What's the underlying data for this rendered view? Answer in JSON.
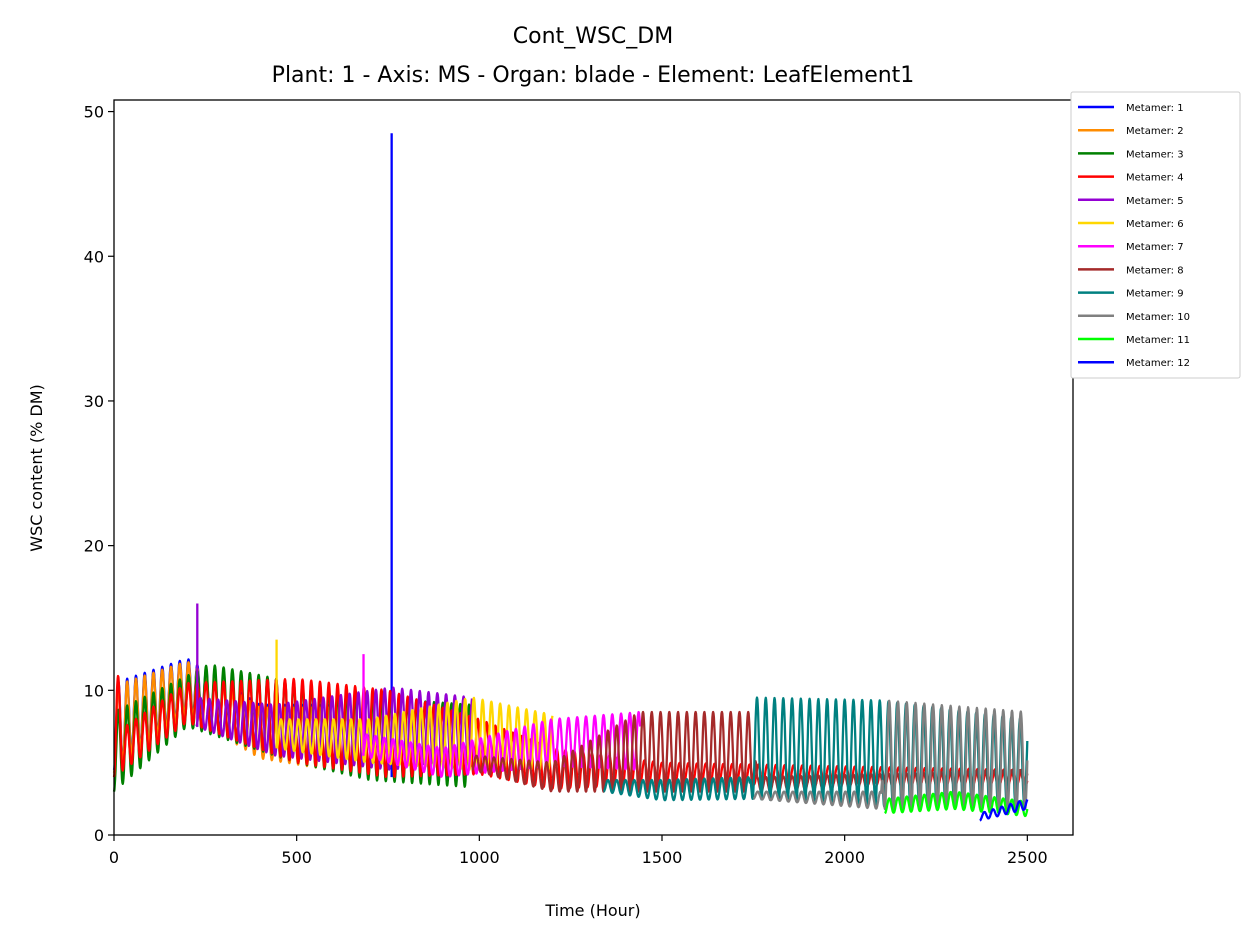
{
  "chart_data": {
    "type": "line",
    "title": "Cont_WSC_DM",
    "subtitle": "Plant: 1 - Axis: MS - Organ: blade - Element: LeafElement1",
    "xlabel": "Time (Hour)",
    "ylabel": "WSC content (% DM)",
    "xlim": [
      0,
      2625
    ],
    "ylim": [
      0,
      50.8
    ],
    "xticks": [
      0,
      500,
      1000,
      1500,
      2000,
      2500
    ],
    "yticks": [
      0,
      10,
      20,
      30,
      40,
      50
    ],
    "grid": false,
    "legend_position": "outside top-right",
    "series": [
      {
        "name": "Metamer: 1",
        "color": "#0000ff",
        "start": 0,
        "end": 760,
        "period": 24,
        "lower": [
          [
            0,
            4.5
          ],
          [
            200,
            8.5
          ],
          [
            400,
            5.5
          ],
          [
            760,
            4.0
          ]
        ],
        "upper": [
          [
            0,
            10.5
          ],
          [
            200,
            12.2
          ],
          [
            400,
            9.0
          ],
          [
            760,
            9.0
          ]
        ],
        "spikes": [
          [
            760,
            48.5
          ]
        ]
      },
      {
        "name": "Metamer: 2",
        "color": "#ff8c00",
        "start": 0,
        "end": 760,
        "period": 24,
        "lower": [
          [
            0,
            4.3
          ],
          [
            200,
            8.3
          ],
          [
            400,
            5.3
          ],
          [
            760,
            3.8
          ]
        ],
        "upper": [
          [
            0,
            10.3
          ],
          [
            200,
            12.0
          ],
          [
            400,
            8.8
          ],
          [
            760,
            8.8
          ]
        ],
        "spikes": []
      },
      {
        "name": "Metamer: 3",
        "color": "#008000",
        "start": 0,
        "end": 980,
        "period": 24,
        "lower": [
          [
            0,
            3.0
          ],
          [
            200,
            7.5
          ],
          [
            500,
            5.0
          ],
          [
            700,
            3.8
          ],
          [
            980,
            3.3
          ]
        ],
        "upper": [
          [
            0,
            8.5
          ],
          [
            200,
            11.0
          ],
          [
            260,
            11.8
          ],
          [
            500,
            10.5
          ],
          [
            700,
            9.5
          ],
          [
            980,
            9.0
          ]
        ],
        "spikes": []
      },
      {
        "name": "Metamer: 4",
        "color": "#ff0000",
        "start": 0,
        "end": 2500,
        "period": 24,
        "lower": [
          [
            0,
            4.0
          ],
          [
            200,
            7.8
          ],
          [
            500,
            5.0
          ],
          [
            750,
            4.0
          ],
          [
            1000,
            4.2
          ],
          [
            1200,
            3.2
          ],
          [
            1500,
            3.5
          ],
          [
            2500,
            3.5
          ]
        ],
        "upper": [
          [
            0,
            13.2
          ],
          [
            30,
            7.5
          ],
          [
            200,
            10.5
          ],
          [
            500,
            10.8
          ],
          [
            750,
            10.0
          ],
          [
            1000,
            8.0
          ],
          [
            1200,
            6.0
          ],
          [
            1500,
            5.0
          ],
          [
            2500,
            4.5
          ]
        ],
        "spikes": []
      },
      {
        "name": "Metamer: 5",
        "color": "#9400d3",
        "start": 225,
        "end": 980,
        "period": 24,
        "lower": [
          [
            225,
            7.5
          ],
          [
            440,
            5.5
          ],
          [
            760,
            4.5
          ],
          [
            980,
            5.5
          ]
        ],
        "upper": [
          [
            225,
            9.5
          ],
          [
            440,
            9.0
          ],
          [
            760,
            10.2
          ],
          [
            980,
            9.5
          ]
        ],
        "spikes": [
          [
            228,
            16.0
          ]
        ]
      },
      {
        "name": "Metamer: 6",
        "color": "#ffd700",
        "start": 445,
        "end": 1200,
        "period": 24,
        "lower": [
          [
            445,
            6.0
          ],
          [
            700,
            5.0
          ],
          [
            980,
            4.5
          ],
          [
            1200,
            4.5
          ]
        ],
        "upper": [
          [
            445,
            8.0
          ],
          [
            700,
            8.0
          ],
          [
            980,
            9.5
          ],
          [
            1200,
            8.3
          ]
        ],
        "spikes": [
          [
            445,
            13.5
          ]
        ]
      },
      {
        "name": "Metamer: 7",
        "color": "#ff00ff",
        "start": 680,
        "end": 1440,
        "period": 24,
        "lower": [
          [
            680,
            5.5
          ],
          [
            900,
            4.0
          ],
          [
            1200,
            4.8
          ],
          [
            1440,
            4.5
          ]
        ],
        "upper": [
          [
            680,
            7.0
          ],
          [
            900,
            6.0
          ],
          [
            1200,
            8.0
          ],
          [
            1440,
            8.5
          ]
        ],
        "spikes": [
          [
            683,
            12.5
          ]
        ]
      },
      {
        "name": "Metamer: 8",
        "color": "#a52a2a",
        "start": 980,
        "end": 2500,
        "period": 24,
        "lower": [
          [
            980,
            4.5
          ],
          [
            1200,
            3.0
          ],
          [
            1440,
            3.0
          ],
          [
            1750,
            3.0
          ],
          [
            2500,
            3.5
          ]
        ],
        "upper": [
          [
            980,
            5.5
          ],
          [
            1200,
            5.0
          ],
          [
            1440,
            8.5
          ],
          [
            1750,
            8.5
          ],
          [
            1760,
            4.0
          ],
          [
            2500,
            4.5
          ]
        ],
        "spikes": []
      },
      {
        "name": "Metamer: 9",
        "color": "#008080",
        "start": 1340,
        "end": 2500,
        "period": 24,
        "lower": [
          [
            1340,
            3.0
          ],
          [
            1500,
            2.4
          ],
          [
            1750,
            2.5
          ],
          [
            2100,
            2.0
          ],
          [
            2500,
            2.0
          ]
        ],
        "upper": [
          [
            1340,
            3.8
          ],
          [
            1500,
            3.8
          ],
          [
            1740,
            4.0
          ],
          [
            1750,
            9.5
          ],
          [
            2100,
            9.3
          ],
          [
            2500,
            8.0
          ]
        ],
        "spikes": []
      },
      {
        "name": "Metamer: 10",
        "color": "#808080",
        "start": 1750,
        "end": 2500,
        "period": 24,
        "lower": [
          [
            1750,
            2.5
          ],
          [
            2000,
            2.0
          ],
          [
            2100,
            1.8
          ],
          [
            2500,
            1.8
          ]
        ],
        "upper": [
          [
            1750,
            3.0
          ],
          [
            2100,
            3.0
          ],
          [
            2110,
            9.3
          ],
          [
            2500,
            8.5
          ]
        ],
        "spikes": []
      },
      {
        "name": "Metamer: 11",
        "color": "#00ff00",
        "start": 2110,
        "end": 2500,
        "period": 24,
        "lower": [
          [
            2110,
            1.5
          ],
          [
            2300,
            1.8
          ],
          [
            2500,
            1.3
          ]
        ],
        "upper": [
          [
            2110,
            2.5
          ],
          [
            2300,
            3.0
          ],
          [
            2500,
            2.3
          ]
        ],
        "spikes": []
      },
      {
        "name": "Metamer: 12",
        "color": "#0000ff",
        "start": 2370,
        "end": 2500,
        "period": 24,
        "lower": [
          [
            2370,
            1.0
          ],
          [
            2500,
            1.8
          ]
        ],
        "upper": [
          [
            2370,
            1.5
          ],
          [
            2500,
            2.5
          ]
        ],
        "spikes": []
      }
    ]
  }
}
